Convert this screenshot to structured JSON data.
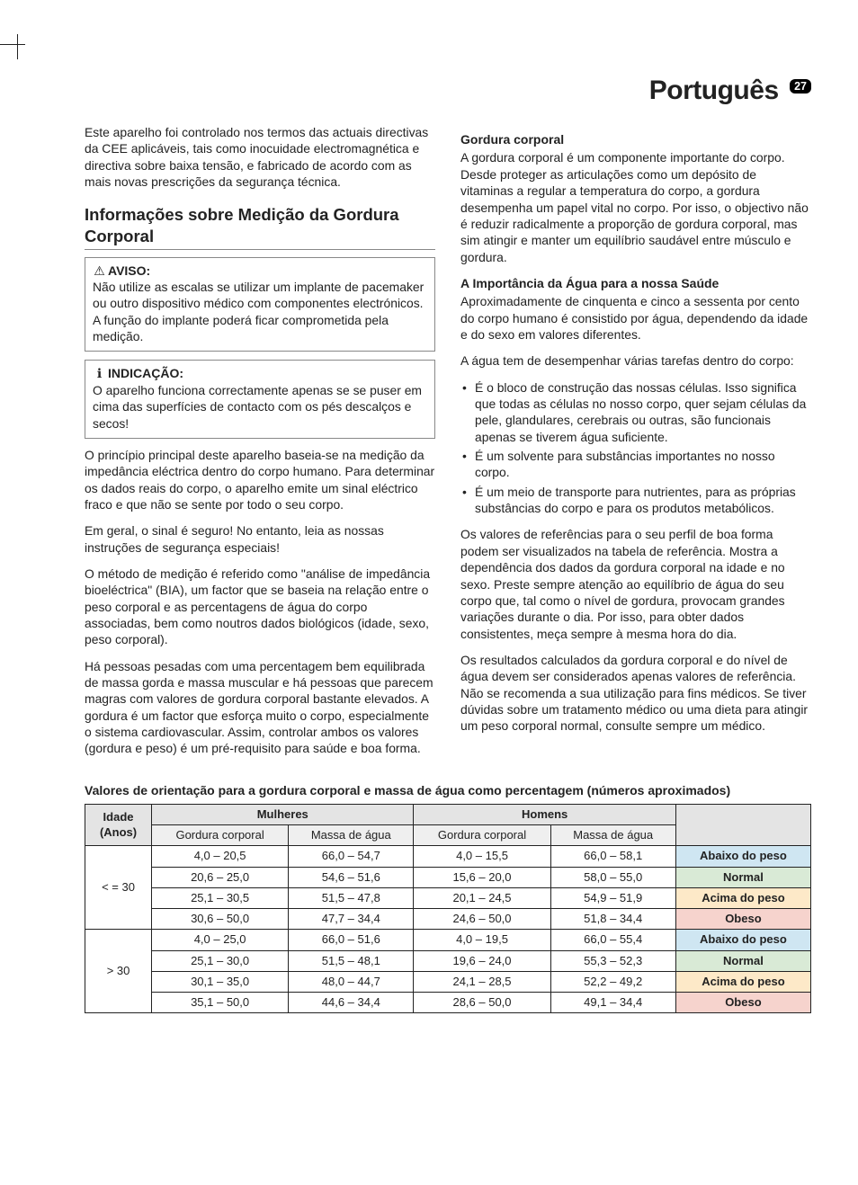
{
  "header": {
    "language": "Português",
    "page_number": "27"
  },
  "intro": "Este aparelho foi controlado nos termos das actuais directivas da CEE aplicáveis, tais como inocuidade electromagnética e directiva sobre baixa tensão, e fabricado de acordo com as mais novas prescrições da segurança técnica.",
  "section_title": "Informações sobre Medição da Gordura Corporal",
  "aviso": {
    "icon": "⚠",
    "label": "AVISO:",
    "text": "Não utilize as escalas se utilizar um implante de pacemaker ou outro dispositivo médico com componentes electrónicos. A função do implante poderá ficar comprometida pela medição."
  },
  "indicacao": {
    "icon": "ℹ",
    "label": "INDICAÇÃO:",
    "text": "O aparelho funciona correctamente apenas se se puser em cima das superfícies de contacto com os pés descalços e secos!"
  },
  "left_paras": [
    "O princípio principal deste aparelho baseia-se na medição da impedância eléctrica dentro do corpo humano. Para determinar os dados reais do corpo, o aparelho emite um sinal eléctrico fraco e que não se sente por todo o seu corpo.",
    "Em geral, o sinal é seguro! No entanto, leia as nossas instruções de segurança especiais!",
    "O método de medição é referido como \"análise de impedância bioeléctrica\" (BIA), um factor que se baseia na relação entre o peso corporal e as percentagens de água do corpo associadas, bem como noutros dados biológicos (idade, sexo, peso corporal).",
    "Há pessoas pesadas com uma percentagem bem equilibrada de massa gorda e massa muscular e há pessoas que parecem magras com valores de gordura corporal bastante elevados. A gordura é um factor que esforça muito o corpo, especialmente o sistema cardiovascular. Assim, controlar ambos os valores (gordura e peso) é um pré-requisito para saúde e boa forma."
  ],
  "h_gordura": "Gordura corporal",
  "p_gordura": "A gordura corporal é um componente importante do corpo. Desde proteger as articulações como um depósito de vitaminas a regular a temperatura do corpo, a gordura desempenha um papel vital no corpo. Por isso, o objectivo não é reduzir radicalmente a proporção de gordura corporal, mas sim atingir e manter um equilíbrio saudável entre músculo e gordura.",
  "h_agua": "A Importância da Água para a nossa Saúde",
  "p_agua1": "Aproximadamente de cinquenta e cinco a sessenta por cento do corpo humano é consistido por água, dependendo da idade e do sexo em valores diferentes.",
  "p_agua2": "A água tem de desempenhar várias tarefas dentro do corpo:",
  "bullets": [
    "É o bloco de construção das nossas células. Isso significa que todas as células no nosso corpo, quer sejam células da pele, glandulares, cerebrais ou outras, são funcionais apenas se tiverem água suficiente.",
    "É um solvente para substâncias importantes no nosso corpo.",
    "É um meio de transporte para nutrientes, para as próprias substâncias do corpo e para os produtos metabólicos."
  ],
  "p_agua3": "Os valores de referências para o seu perfil de boa forma podem ser visualizados na tabela de referência. Mostra a dependência dos dados da gordura corporal na idade e no sexo. Preste sempre atenção ao equilíbrio de água do seu corpo que, tal como o nível de gordura, provocam grandes variações durante o dia. Por isso, para obter dados consistentes, meça sempre à mesma hora do dia.",
  "p_agua4": "Os resultados calculados da gordura corporal e do nível de água devem ser considerados apenas valores de referência. Não se recomenda a sua utilização para fins médicos. Se tiver dúvidas sobre um tratamento médico ou uma dieta para atingir um peso corporal normal, consulte sempre um médico.",
  "table": {
    "title": "Valores de orientação para a gordura corporal e massa de água como percentagem (números aproximados)",
    "head": {
      "age": "Idade\n(Anos)",
      "women": "Mulheres",
      "men": "Homens",
      "fat": "Gordura corporal",
      "water": "Massa de água"
    },
    "classif": {
      "low": "Abaixo do peso",
      "normal": "Normal",
      "over": "Acima do peso",
      "obese": "Obeso"
    },
    "colors": {
      "low": "#cfe6f2",
      "normal": "#d9ead6",
      "over": "#fde9c8",
      "obese": "#f6d3cd",
      "head_bg": "#e4e4e4",
      "subhead_bg": "#efefef",
      "border": "#222222"
    },
    "groups": [
      {
        "age": "< = 30",
        "rows": [
          {
            "wf": "4,0 – 20,5",
            "ww": "66,0 – 54,7",
            "mf": "4,0 – 15,5",
            "mw": "66,0 – 58,1",
            "cls": "low"
          },
          {
            "wf": "20,6 – 25,0",
            "ww": "54,6 – 51,6",
            "mf": "15,6 – 20,0",
            "mw": "58,0 – 55,0",
            "cls": "normal"
          },
          {
            "wf": "25,1 – 30,5",
            "ww": "51,5 – 47,8",
            "mf": "20,1 – 24,5",
            "mw": "54,9 – 51,9",
            "cls": "over"
          },
          {
            "wf": "30,6 – 50,0",
            "ww": "47,7 – 34,4",
            "mf": "24,6 – 50,0",
            "mw": "51,8 – 34,4",
            "cls": "obese"
          }
        ]
      },
      {
        "age": "> 30",
        "rows": [
          {
            "wf": "4,0 – 25,0",
            "ww": "66,0 – 51,6",
            "mf": "4,0 – 19,5",
            "mw": "66,0 – 55,4",
            "cls": "low"
          },
          {
            "wf": "25,1 – 30,0",
            "ww": "51,5 – 48,1",
            "mf": "19,6 – 24,0",
            "mw": "55,3 – 52,3",
            "cls": "normal"
          },
          {
            "wf": "30,1 – 35,0",
            "ww": "48,0 – 44,7",
            "mf": "24,1 – 28,5",
            "mw": "52,2 – 49,2",
            "cls": "over"
          },
          {
            "wf": "35,1 – 50,0",
            "ww": "44,6 – 34,4",
            "mf": "28,6 – 50,0",
            "mw": "49,1 – 34,4",
            "cls": "obese"
          }
        ]
      }
    ]
  }
}
